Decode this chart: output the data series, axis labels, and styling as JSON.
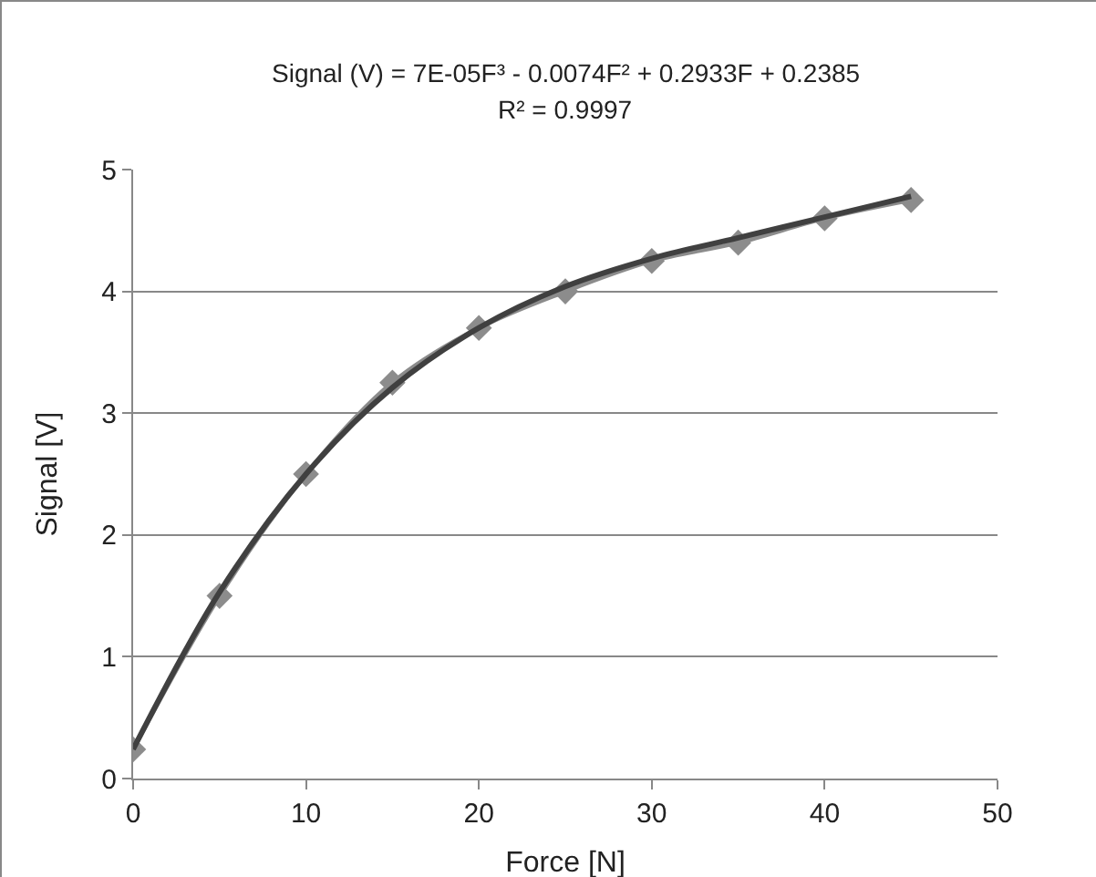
{
  "chart_data": {
    "type": "line",
    "xlabel": "Force [N]",
    "ylabel": "Signal [V]",
    "annotations": [
      "Signal (V) = 7E-05F³ - 0.0074F² + 0.2933F + 0.2385",
      "R² = 0.9997"
    ],
    "series": [
      {
        "color": "#8c8c8c",
        "marker": "diamond",
        "x": [
          0,
          5,
          10,
          15,
          20,
          25,
          30,
          35,
          40,
          45
        ],
        "values": [
          0.24,
          1.5,
          2.5,
          3.25,
          3.7,
          4.0,
          4.25,
          4.4,
          4.6,
          4.75
        ]
      },
      {
        "color": "#404040",
        "marker": "none",
        "x": [
          0,
          5,
          10,
          15,
          20,
          25,
          30,
          35,
          40,
          45
        ],
        "values": [
          0.24,
          1.53,
          2.5,
          3.21,
          3.7,
          4.04,
          4.27,
          4.44,
          4.61,
          4.78
        ]
      }
    ],
    "xlim": [
      0,
      50
    ],
    "xticks": [
      0,
      10,
      20,
      30,
      40,
      50
    ],
    "ylim": [
      0,
      5
    ],
    "yticks": [
      0,
      1,
      2,
      3,
      4,
      5
    ],
    "grid": "y",
    "line_style": "solid"
  }
}
